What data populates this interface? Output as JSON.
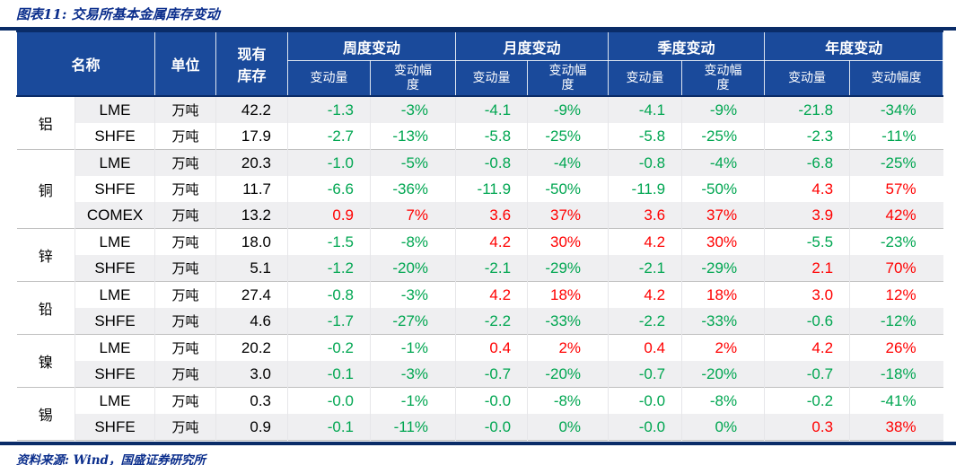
{
  "title": "图表11: 交易所基本金属库存变动",
  "footer": {
    "source": "资料来源: Wind，国盛证券研究所"
  },
  "colors": {
    "header_bg": "#1A4A9B",
    "rule_navy": "#0A2C68",
    "title_text": "#0B2E8C",
    "negative_green": "#00A651",
    "positive_red": "#FF0000",
    "stripe_gray": "#EFEFF1",
    "group_divider": "#BFBFBF"
  },
  "table": {
    "header": {
      "name": "名称",
      "unit": "单位",
      "inventory": "现有\n库存",
      "periods": [
        "周度变动",
        "月度变动",
        "季度变动",
        "年度变动"
      ],
      "amount": "变动量",
      "rate_wrapped": "变动幅\n度",
      "rate": "变动幅度"
    },
    "groups": [
      {
        "metal": "铝",
        "rows": [
          {
            "exchange": "LME",
            "unit": "万吨",
            "inventory": "42.2",
            "week": [
              "-1.3",
              "-3%"
            ],
            "month": [
              "-4.1",
              "-9%"
            ],
            "quarter": [
              "-4.1",
              "-9%"
            ],
            "year": [
              "-21.8",
              "-34%"
            ]
          },
          {
            "exchange": "SHFE",
            "unit": "万吨",
            "inventory": "17.9",
            "week": [
              "-2.7",
              "-13%"
            ],
            "month": [
              "-5.8",
              "-25%"
            ],
            "quarter": [
              "-5.8",
              "-25%"
            ],
            "year": [
              "-2.3",
              "-11%"
            ]
          }
        ]
      },
      {
        "metal": "铜",
        "rows": [
          {
            "exchange": "LME",
            "unit": "万吨",
            "inventory": "20.3",
            "week": [
              "-1.0",
              "-5%"
            ],
            "month": [
              "-0.8",
              "-4%"
            ],
            "quarter": [
              "-0.8",
              "-4%"
            ],
            "year": [
              "-6.8",
              "-25%"
            ]
          },
          {
            "exchange": "SHFE",
            "unit": "万吨",
            "inventory": "11.7",
            "week": [
              "-6.6",
              "-36%"
            ],
            "month": [
              "-11.9",
              "-50%"
            ],
            "quarter": [
              "-11.9",
              "-50%"
            ],
            "year": [
              "4.3",
              "57%"
            ]
          },
          {
            "exchange": "COMEX",
            "unit": "万吨",
            "inventory": "13.2",
            "week": [
              "0.9",
              "7%"
            ],
            "month": [
              "3.6",
              "37%"
            ],
            "quarter": [
              "3.6",
              "37%"
            ],
            "year": [
              "3.9",
              "42%"
            ]
          }
        ]
      },
      {
        "metal": "锌",
        "rows": [
          {
            "exchange": "LME",
            "unit": "万吨",
            "inventory": "18.0",
            "week": [
              "-1.5",
              "-8%"
            ],
            "month": [
              "4.2",
              "30%"
            ],
            "quarter": [
              "4.2",
              "30%"
            ],
            "year": [
              "-5.5",
              "-23%"
            ]
          },
          {
            "exchange": "SHFE",
            "unit": "万吨",
            "inventory": "5.1",
            "week": [
              "-1.2",
              "-20%"
            ],
            "month": [
              "-2.1",
              "-29%"
            ],
            "quarter": [
              "-2.1",
              "-29%"
            ],
            "year": [
              "2.1",
              "70%"
            ]
          }
        ]
      },
      {
        "metal": "铅",
        "rows": [
          {
            "exchange": "LME",
            "unit": "万吨",
            "inventory": "27.4",
            "week": [
              "-0.8",
              "-3%"
            ],
            "month": [
              "4.2",
              "18%"
            ],
            "quarter": [
              "4.2",
              "18%"
            ],
            "year": [
              "3.0",
              "12%"
            ]
          },
          {
            "exchange": "SHFE",
            "unit": "万吨",
            "inventory": "4.6",
            "week": [
              "-1.7",
              "-27%"
            ],
            "month": [
              "-2.2",
              "-33%"
            ],
            "quarter": [
              "-2.2",
              "-33%"
            ],
            "year": [
              "-0.6",
              "-12%"
            ]
          }
        ]
      },
      {
        "metal": "镍",
        "rows": [
          {
            "exchange": "LME",
            "unit": "万吨",
            "inventory": "20.2",
            "week": [
              "-0.2",
              "-1%"
            ],
            "month": [
              "0.4",
              "2%"
            ],
            "quarter": [
              "0.4",
              "2%"
            ],
            "year": [
              "4.2",
              "26%"
            ]
          },
          {
            "exchange": "SHFE",
            "unit": "万吨",
            "inventory": "3.0",
            "week": [
              "-0.1",
              "-3%"
            ],
            "month": [
              "-0.7",
              "-20%"
            ],
            "quarter": [
              "-0.7",
              "-20%"
            ],
            "year": [
              "-0.7",
              "-18%"
            ]
          }
        ]
      },
      {
        "metal": "锡",
        "rows": [
          {
            "exchange": "LME",
            "unit": "万吨",
            "inventory": "0.3",
            "week": [
              "-0.0",
              "-1%"
            ],
            "month": [
              "-0.0",
              "-8%"
            ],
            "quarter": [
              "-0.0",
              "-8%"
            ],
            "year": [
              "-0.2",
              "-41%"
            ]
          },
          {
            "exchange": "SHFE",
            "unit": "万吨",
            "inventory": "0.9",
            "week": [
              "-0.1",
              "-11%"
            ],
            "month": [
              "-0.0",
              "0%"
            ],
            "quarter": [
              "-0.0",
              "0%"
            ],
            "year": [
              "0.3",
              "38%"
            ]
          }
        ]
      }
    ]
  }
}
